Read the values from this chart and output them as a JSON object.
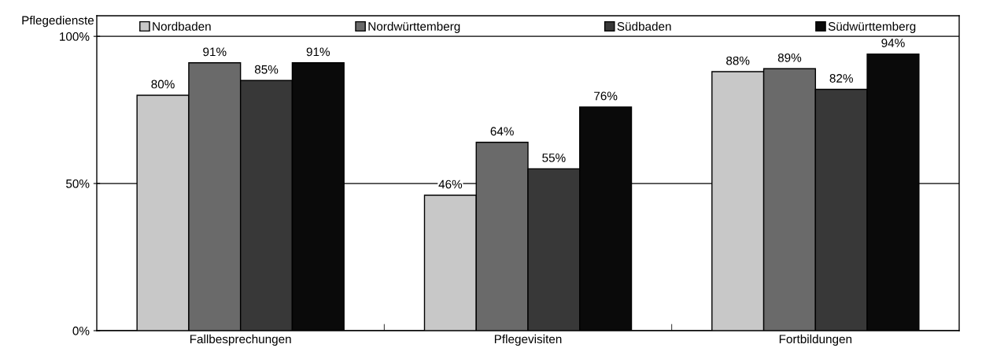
{
  "chart_data": {
    "type": "bar",
    "ylabel": "Pflegedienste",
    "categories": [
      "Fallbesprechungen",
      "Pflegevisiten",
      "Fortbildungen"
    ],
    "series": [
      {
        "name": "Nordbaden",
        "color": "#c8c8c8",
        "values": [
          80,
          46,
          88
        ],
        "value_labels": [
          "80%",
          "46%",
          "88%"
        ]
      },
      {
        "name": "Nordwürttemberg",
        "color": "#6a6a6a",
        "values": [
          91,
          64,
          89
        ],
        "value_labels": [
          "91%",
          "64%",
          "89%"
        ]
      },
      {
        "name": "Südbaden",
        "color": "#383838",
        "values": [
          85,
          55,
          82
        ],
        "value_labels": [
          "85%",
          "55%",
          "82%"
        ]
      },
      {
        "name": "Südwürttemberg",
        "color": "#0a0a0a",
        "values": [
          91,
          76,
          94
        ],
        "value_labels": [
          "91%",
          "76%",
          "94%"
        ]
      }
    ],
    "ylim": [
      0,
      107
    ],
    "yticks": [
      {
        "value": 0,
        "label": "0%"
      },
      {
        "value": 50,
        "label": "50%"
      },
      {
        "value": 100,
        "label": "100%"
      }
    ],
    "grid": "y",
    "legend": "top"
  }
}
